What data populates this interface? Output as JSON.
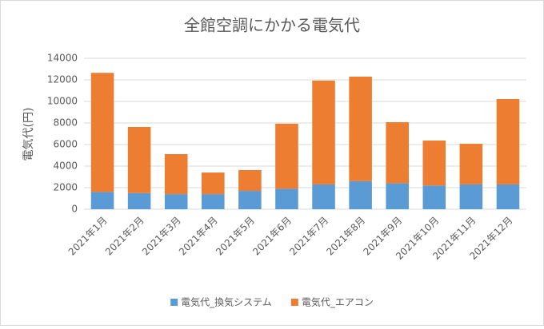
{
  "chart_data": {
    "type": "stacked_bar",
    "title": "全館空調にかかる電気代",
    "y_label": "電気代(円)",
    "categories": [
      "2021年1月",
      "2021年2月",
      "2021年3月",
      "2021年4月",
      "2021年5月",
      "2021年6月",
      "2021年7月",
      "2021年8月",
      "2021年9月",
      "2021年10月",
      "2021年11月",
      "2021年12月"
    ],
    "series": [
      {
        "name": "電気代_換気システム",
        "color": "#5b9bd5",
        "values": [
          1600,
          1500,
          1400,
          1400,
          1700,
          1900,
          2300,
          2600,
          2400,
          2200,
          2300,
          2300
        ]
      },
      {
        "name": "電気代_エアコン",
        "color": "#ed7d31",
        "values": [
          11050,
          6130,
          3710,
          2000,
          1930,
          6030,
          9630,
          9700,
          5670,
          4170,
          3770,
          7920
        ]
      }
    ],
    "ylim": [
      0,
      14000
    ],
    "yticks": [
      0,
      2000,
      4000,
      6000,
      8000,
      10000,
      12000,
      14000
    ],
    "grid": true,
    "legend": "bottom"
  }
}
